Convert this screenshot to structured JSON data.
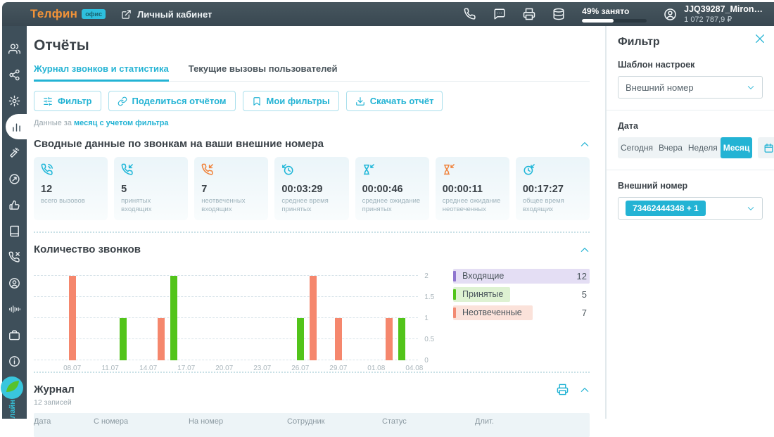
{
  "topbar": {
    "logo": "Телфин",
    "logo_badge": "офис",
    "cabinet_link": "Личный кабинет",
    "icons": [
      "phone-icon",
      "chat-icon",
      "printer-icon",
      "storage-icon"
    ],
    "usage_label": "49% занято",
    "usage_percent": 49,
    "account_name": "JJQ39287_Miron…",
    "account_balance": "1 072 787,9 ₽"
  },
  "sidebar": {
    "items": [
      {
        "icon": "users-icon",
        "active": false
      },
      {
        "icon": "network-icon",
        "active": false
      },
      {
        "icon": "gear-icon",
        "active": false
      },
      {
        "icon": "bar-chart-icon",
        "active": true
      },
      {
        "icon": "wand-icon",
        "active": false
      },
      {
        "icon": "target-icon",
        "active": false
      },
      {
        "icon": "thumbs-up-icon",
        "active": false
      },
      {
        "icon": "book-icon",
        "active": false
      },
      {
        "icon": "phone-x-icon",
        "active": false
      },
      {
        "icon": "contact-icon",
        "active": false
      },
      {
        "icon": "voice-icon",
        "active": false
      },
      {
        "icon": "briefcase-icon",
        "active": false
      },
      {
        "icon": "info-icon",
        "active": false
      }
    ],
    "footer_text": "лайн"
  },
  "page": {
    "title": "Отчёты",
    "tabs": [
      {
        "label": "Журнал звонков и статистика",
        "active": true
      },
      {
        "label": "Текущие вызовы пользователей",
        "active": false
      }
    ],
    "toolbar": [
      {
        "icon": "filter-icon",
        "label": "Фильтр"
      },
      {
        "icon": "link-icon",
        "label": "Поделиться отчётом"
      },
      {
        "icon": "bookmark-icon",
        "label": "Мои фильтры"
      },
      {
        "icon": "download-icon",
        "label": "Скачать отчёт"
      }
    ],
    "filter_note_prefix": "Данные за",
    "filter_note_link": "месяц с учетом фильтра"
  },
  "summary": {
    "title": "Сводные данные по звонкам на ваши внешние номера",
    "cards": [
      {
        "icon": "phone-call-icon",
        "color": "#1db6d8",
        "value": "12",
        "label": "всего вызовов"
      },
      {
        "icon": "phone-incoming-icon",
        "color": "#1db6d8",
        "value": "5",
        "label": "принятых входящих"
      },
      {
        "icon": "phone-missed-icon",
        "color": "#f0823a",
        "value": "7",
        "label": "неотвеченных входящих"
      },
      {
        "icon": "clock-incoming-icon",
        "color": "#1db6d8",
        "value": "00:03:29",
        "label": "среднее время принятых"
      },
      {
        "icon": "hourglass-incoming-icon",
        "color": "#1db6d8",
        "value": "00:00:46",
        "label": "среднее ожидание принятых"
      },
      {
        "icon": "hourglass-missed-icon",
        "color": "#f0823a",
        "value": "00:00:11",
        "label": "среднее ожидание неотвеченных"
      },
      {
        "icon": "clock-total-icon",
        "color": "#1db6d8",
        "value": "00:17:27",
        "label": "общее время входящих"
      }
    ]
  },
  "chart_data": {
    "type": "bar",
    "title": "Количество звонков",
    "x_ticks": [
      "08.07",
      "11.07",
      "14.07",
      "17.07",
      "20.07",
      "23.07",
      "26.07",
      "29.07",
      "01.08",
      "04.08"
    ],
    "y_ticks": [
      0,
      0.5,
      1,
      1.5,
      2
    ],
    "ylim": [
      0,
      2.2
    ],
    "grid": true,
    "legend_position": "right",
    "series": [
      {
        "name": "Принятые",
        "color": "#52c41a",
        "points": [
          {
            "date": "12.07",
            "value": 1
          },
          {
            "date": "16.07",
            "value": 2
          },
          {
            "date": "26.07",
            "value": 1
          },
          {
            "date": "03.08",
            "value": 1
          }
        ]
      },
      {
        "name": "Неотвеченные",
        "color": "#f5876d",
        "points": [
          {
            "date": "08.07",
            "value": 2
          },
          {
            "date": "15.07",
            "value": 1
          },
          {
            "date": "27.07",
            "value": 2
          },
          {
            "date": "29.07",
            "value": 1
          },
          {
            "date": "02.08",
            "value": 1
          }
        ]
      }
    ],
    "legend": [
      {
        "label": "Входящие",
        "value": 12,
        "color": "#8f76cf",
        "bg": "#e4def4"
      },
      {
        "label": "Принятые",
        "value": 5,
        "color": "#52c41a",
        "bg": "#def2d2"
      },
      {
        "label": "Неотвеченные",
        "value": 7,
        "color": "#f28a72",
        "bg": "#fbe2da"
      }
    ]
  },
  "journal": {
    "title": "Журнал",
    "count_label": "12 записей",
    "columns": [
      "Дата",
      "С номера",
      "На номер",
      "Сотрудник",
      "Статус",
      "Длит."
    ]
  },
  "filter_panel": {
    "title": "Фильтр",
    "template_label": "Шаблон настроек",
    "template_value": "Внешний номер",
    "date_label": "Дата",
    "date_options": [
      {
        "label": "Сегодня",
        "active": false
      },
      {
        "label": "Вчера",
        "active": false
      },
      {
        "label": "Неделя",
        "active": false
      },
      {
        "label": "Месяц",
        "active": true
      }
    ],
    "number_label": "Внешний номер",
    "number_value": "73462444348 + 1"
  },
  "colors": {
    "accent": "#23b3d4",
    "orange": "#f29338",
    "green": "#52c41a",
    "salmon": "#f5876d",
    "purple": "#8f76cf",
    "topbar": "#3e4f5a"
  }
}
